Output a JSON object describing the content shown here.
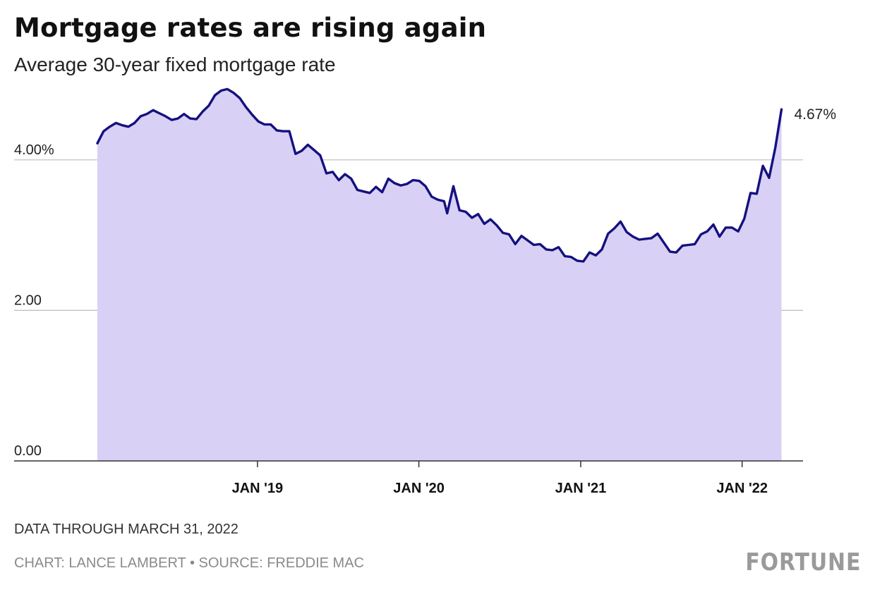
{
  "title": "Mortgage rates are rising again",
  "subtitle": "Average 30-year fixed mortgage rate",
  "note": "DATA THROUGH MARCH 31, 2022",
  "credit": "CHART: LANCE LAMBERT • SOURCE: FREDDIE MAC",
  "brand": "FORTUNE",
  "colors": {
    "line": "#14117f",
    "fill": "#d9d0f5",
    "grid": "#bdbdbd",
    "axis": "#333333",
    "text": "#222222"
  },
  "chart_data": {
    "type": "area",
    "title": "Mortgage rates are rising again",
    "subtitle": "Average 30-year fixed mortgage rate",
    "ylim": [
      0,
      5
    ],
    "yticks": [
      {
        "value": 0,
        "label": "0.00"
      },
      {
        "value": 2,
        "label": "2.00"
      },
      {
        "value": 4,
        "label": "4.00%"
      }
    ],
    "xlim": [
      "2018-01-04",
      "2022-04-20"
    ],
    "xticks": [
      {
        "date": "2019-01-01",
        "label": "JAN '19"
      },
      {
        "date": "2020-01-01",
        "label": "JAN '20"
      },
      {
        "date": "2021-01-01",
        "label": "JAN '21"
      },
      {
        "date": "2022-01-01",
        "label": "JAN '22"
      }
    ],
    "grid": true,
    "end_label": "4.67%",
    "series": [
      {
        "points": [
          [
            "2018-01-04",
            4.22
          ],
          [
            "2018-01-18",
            4.38
          ],
          [
            "2018-02-01",
            4.44
          ],
          [
            "2018-02-15",
            4.49
          ],
          [
            "2018-03-01",
            4.46
          ],
          [
            "2018-03-15",
            4.44
          ],
          [
            "2018-03-29",
            4.49
          ],
          [
            "2018-04-12",
            4.58
          ],
          [
            "2018-04-26",
            4.61
          ],
          [
            "2018-05-10",
            4.66
          ],
          [
            "2018-05-24",
            4.62
          ],
          [
            "2018-06-07",
            4.58
          ],
          [
            "2018-06-21",
            4.53
          ],
          [
            "2018-07-05",
            4.55
          ],
          [
            "2018-07-19",
            4.61
          ],
          [
            "2018-08-02",
            4.55
          ],
          [
            "2018-08-16",
            4.54
          ],
          [
            "2018-08-30",
            4.64
          ],
          [
            "2018-09-13",
            4.72
          ],
          [
            "2018-09-27",
            4.86
          ],
          [
            "2018-10-11",
            4.92
          ],
          [
            "2018-10-25",
            4.94
          ],
          [
            "2018-11-08",
            4.89
          ],
          [
            "2018-11-22",
            4.82
          ],
          [
            "2018-12-06",
            4.7
          ],
          [
            "2018-12-20",
            4.6
          ],
          [
            "2019-01-03",
            4.51
          ],
          [
            "2019-01-17",
            4.47
          ],
          [
            "2019-01-31",
            4.47
          ],
          [
            "2019-02-14",
            4.39
          ],
          [
            "2019-02-28",
            4.38
          ],
          [
            "2019-03-14",
            4.38
          ],
          [
            "2019-03-28",
            4.08
          ],
          [
            "2019-04-11",
            4.12
          ],
          [
            "2019-04-25",
            4.2
          ],
          [
            "2019-05-09",
            4.13
          ],
          [
            "2019-05-23",
            4.06
          ],
          [
            "2019-06-06",
            3.82
          ],
          [
            "2019-06-20",
            3.84
          ],
          [
            "2019-07-04",
            3.73
          ],
          [
            "2019-07-18",
            3.81
          ],
          [
            "2019-08-01",
            3.75
          ],
          [
            "2019-08-15",
            3.6
          ],
          [
            "2019-08-29",
            3.58
          ],
          [
            "2019-09-12",
            3.56
          ],
          [
            "2019-09-26",
            3.64
          ],
          [
            "2019-10-10",
            3.57
          ],
          [
            "2019-10-24",
            3.75
          ],
          [
            "2019-11-07",
            3.69
          ],
          [
            "2019-11-21",
            3.66
          ],
          [
            "2019-12-05",
            3.68
          ],
          [
            "2019-12-19",
            3.73
          ],
          [
            "2020-01-02",
            3.72
          ],
          [
            "2020-01-16",
            3.65
          ],
          [
            "2020-01-30",
            3.51
          ],
          [
            "2020-02-13",
            3.47
          ],
          [
            "2020-02-27",
            3.45
          ],
          [
            "2020-03-05",
            3.29
          ],
          [
            "2020-03-19",
            3.65
          ],
          [
            "2020-04-02",
            3.33
          ],
          [
            "2020-04-16",
            3.31
          ],
          [
            "2020-04-30",
            3.23
          ],
          [
            "2020-05-14",
            3.28
          ],
          [
            "2020-05-28",
            3.15
          ],
          [
            "2020-06-11",
            3.21
          ],
          [
            "2020-06-25",
            3.13
          ],
          [
            "2020-07-09",
            3.03
          ],
          [
            "2020-07-23",
            3.01
          ],
          [
            "2020-08-06",
            2.88
          ],
          [
            "2020-08-20",
            2.99
          ],
          [
            "2020-09-03",
            2.93
          ],
          [
            "2020-09-17",
            2.87
          ],
          [
            "2020-10-01",
            2.88
          ],
          [
            "2020-10-15",
            2.81
          ],
          [
            "2020-10-29",
            2.8
          ],
          [
            "2020-11-12",
            2.84
          ],
          [
            "2020-11-26",
            2.72
          ],
          [
            "2020-12-10",
            2.71
          ],
          [
            "2020-12-24",
            2.66
          ],
          [
            "2021-01-07",
            2.65
          ],
          [
            "2021-01-21",
            2.77
          ],
          [
            "2021-02-04",
            2.73
          ],
          [
            "2021-02-18",
            2.81
          ],
          [
            "2021-03-04",
            3.02
          ],
          [
            "2021-03-18",
            3.09
          ],
          [
            "2021-04-01",
            3.18
          ],
          [
            "2021-04-15",
            3.04
          ],
          [
            "2021-04-29",
            2.98
          ],
          [
            "2021-05-13",
            2.94
          ],
          [
            "2021-05-27",
            2.95
          ],
          [
            "2021-06-10",
            2.96
          ],
          [
            "2021-06-24",
            3.02
          ],
          [
            "2021-07-08",
            2.9
          ],
          [
            "2021-07-22",
            2.78
          ],
          [
            "2021-08-05",
            2.77
          ],
          [
            "2021-08-19",
            2.86
          ],
          [
            "2021-09-02",
            2.87
          ],
          [
            "2021-09-16",
            2.88
          ],
          [
            "2021-09-30",
            3.01
          ],
          [
            "2021-10-14",
            3.05
          ],
          [
            "2021-10-28",
            3.14
          ],
          [
            "2021-11-11",
            2.98
          ],
          [
            "2021-11-25",
            3.1
          ],
          [
            "2021-12-09",
            3.1
          ],
          [
            "2021-12-23",
            3.05
          ],
          [
            "2022-01-06",
            3.22
          ],
          [
            "2022-01-20",
            3.56
          ],
          [
            "2022-02-03",
            3.55
          ],
          [
            "2022-02-17",
            3.92
          ],
          [
            "2022-03-03",
            3.76
          ],
          [
            "2022-03-17",
            4.16
          ],
          [
            "2022-03-31",
            4.67
          ]
        ]
      }
    ]
  }
}
